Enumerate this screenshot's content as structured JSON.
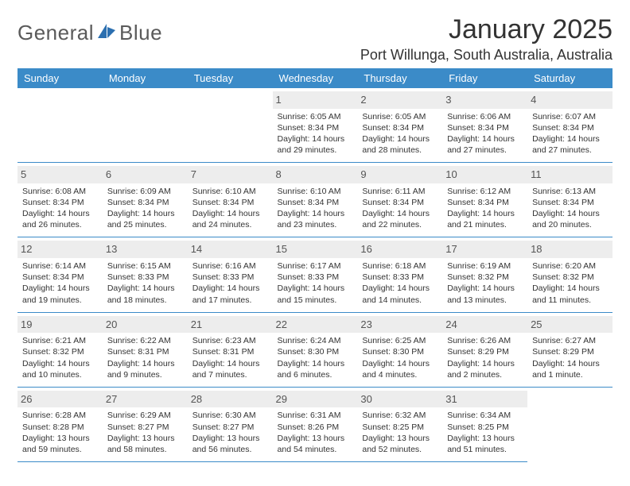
{
  "brand": {
    "text1": "General",
    "text2": "Blue"
  },
  "colors": {
    "header_bg": "#3b8bc8",
    "header_text": "#ffffff",
    "daynum_bg": "#ededed",
    "daynum_text": "#555555",
    "border": "#3b8bc8",
    "logo_blue": "#2b6fb0"
  },
  "title": "January 2025",
  "location": "Port Willunga, South Australia, Australia",
  "dow": [
    "Sunday",
    "Monday",
    "Tuesday",
    "Wednesday",
    "Thursday",
    "Friday",
    "Saturday"
  ],
  "first_day_index": 3,
  "days": [
    {
      "n": "1",
      "sr": "6:05 AM",
      "ss": "8:34 PM",
      "dl": "14 hours and 29 minutes."
    },
    {
      "n": "2",
      "sr": "6:05 AM",
      "ss": "8:34 PM",
      "dl": "14 hours and 28 minutes."
    },
    {
      "n": "3",
      "sr": "6:06 AM",
      "ss": "8:34 PM",
      "dl": "14 hours and 27 minutes."
    },
    {
      "n": "4",
      "sr": "6:07 AM",
      "ss": "8:34 PM",
      "dl": "14 hours and 27 minutes."
    },
    {
      "n": "5",
      "sr": "6:08 AM",
      "ss": "8:34 PM",
      "dl": "14 hours and 26 minutes."
    },
    {
      "n": "6",
      "sr": "6:09 AM",
      "ss": "8:34 PM",
      "dl": "14 hours and 25 minutes."
    },
    {
      "n": "7",
      "sr": "6:10 AM",
      "ss": "8:34 PM",
      "dl": "14 hours and 24 minutes."
    },
    {
      "n": "8",
      "sr": "6:10 AM",
      "ss": "8:34 PM",
      "dl": "14 hours and 23 minutes."
    },
    {
      "n": "9",
      "sr": "6:11 AM",
      "ss": "8:34 PM",
      "dl": "14 hours and 22 minutes."
    },
    {
      "n": "10",
      "sr": "6:12 AM",
      "ss": "8:34 PM",
      "dl": "14 hours and 21 minutes."
    },
    {
      "n": "11",
      "sr": "6:13 AM",
      "ss": "8:34 PM",
      "dl": "14 hours and 20 minutes."
    },
    {
      "n": "12",
      "sr": "6:14 AM",
      "ss": "8:34 PM",
      "dl": "14 hours and 19 minutes."
    },
    {
      "n": "13",
      "sr": "6:15 AM",
      "ss": "8:33 PM",
      "dl": "14 hours and 18 minutes."
    },
    {
      "n": "14",
      "sr": "6:16 AM",
      "ss": "8:33 PM",
      "dl": "14 hours and 17 minutes."
    },
    {
      "n": "15",
      "sr": "6:17 AM",
      "ss": "8:33 PM",
      "dl": "14 hours and 15 minutes."
    },
    {
      "n": "16",
      "sr": "6:18 AM",
      "ss": "8:33 PM",
      "dl": "14 hours and 14 minutes."
    },
    {
      "n": "17",
      "sr": "6:19 AM",
      "ss": "8:32 PM",
      "dl": "14 hours and 13 minutes."
    },
    {
      "n": "18",
      "sr": "6:20 AM",
      "ss": "8:32 PM",
      "dl": "14 hours and 11 minutes."
    },
    {
      "n": "19",
      "sr": "6:21 AM",
      "ss": "8:32 PM",
      "dl": "14 hours and 10 minutes."
    },
    {
      "n": "20",
      "sr": "6:22 AM",
      "ss": "8:31 PM",
      "dl": "14 hours and 9 minutes."
    },
    {
      "n": "21",
      "sr": "6:23 AM",
      "ss": "8:31 PM",
      "dl": "14 hours and 7 minutes."
    },
    {
      "n": "22",
      "sr": "6:24 AM",
      "ss": "8:30 PM",
      "dl": "14 hours and 6 minutes."
    },
    {
      "n": "23",
      "sr": "6:25 AM",
      "ss": "8:30 PM",
      "dl": "14 hours and 4 minutes."
    },
    {
      "n": "24",
      "sr": "6:26 AM",
      "ss": "8:29 PM",
      "dl": "14 hours and 2 minutes."
    },
    {
      "n": "25",
      "sr": "6:27 AM",
      "ss": "8:29 PM",
      "dl": "14 hours and 1 minute."
    },
    {
      "n": "26",
      "sr": "6:28 AM",
      "ss": "8:28 PM",
      "dl": "13 hours and 59 minutes."
    },
    {
      "n": "27",
      "sr": "6:29 AM",
      "ss": "8:27 PM",
      "dl": "13 hours and 58 minutes."
    },
    {
      "n": "28",
      "sr": "6:30 AM",
      "ss": "8:27 PM",
      "dl": "13 hours and 56 minutes."
    },
    {
      "n": "29",
      "sr": "6:31 AM",
      "ss": "8:26 PM",
      "dl": "13 hours and 54 minutes."
    },
    {
      "n": "30",
      "sr": "6:32 AM",
      "ss": "8:25 PM",
      "dl": "13 hours and 52 minutes."
    },
    {
      "n": "31",
      "sr": "6:34 AM",
      "ss": "8:25 PM",
      "dl": "13 hours and 51 minutes."
    }
  ],
  "labels": {
    "sunrise": "Sunrise:",
    "sunset": "Sunset:",
    "daylight": "Daylight:"
  }
}
